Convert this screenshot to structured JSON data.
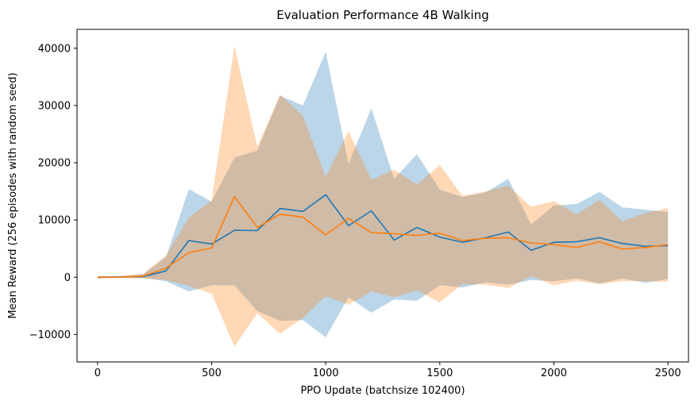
{
  "chart_data": {
    "type": "line",
    "title": "Evaluation Performance 4B Walking",
    "xlabel": "PPO Update (batchsize 102400)",
    "ylabel": "Mean Reward (256 episodes with random seed)",
    "xlim": [
      -90,
      2590
    ],
    "ylim": [
      -14800,
      43300
    ],
    "xticks": [
      0,
      500,
      1000,
      1500,
      2000,
      2500
    ],
    "xtick_labels": [
      "0",
      "500",
      "1000",
      "1500",
      "2000",
      "2500"
    ],
    "yticks": [
      -10000,
      0,
      10000,
      20000,
      30000,
      40000
    ],
    "ytick_labels": [
      "−10000",
      "0",
      "10000",
      "20000",
      "30000",
      "40000"
    ],
    "grid": false,
    "x": [
      0,
      100,
      200,
      300,
      400,
      500,
      600,
      700,
      800,
      900,
      1000,
      1100,
      1200,
      1300,
      1400,
      1500,
      1600,
      1700,
      1800,
      1900,
      2000,
      2100,
      2200,
      2300,
      2400,
      2500
    ],
    "series": [
      {
        "color": "#1f77b4",
        "band_color": "#1f77b4",
        "values": [
          0,
          50,
          100,
          1100,
          6400,
          5800,
          8200,
          8150,
          12000,
          11500,
          14400,
          9000,
          11600,
          6500,
          8700,
          7000,
          6100,
          6900,
          7900,
          4700,
          6100,
          6200,
          6900,
          5900,
          5400,
          5500
        ],
        "band_lower": [
          -200,
          -100,
          -100,
          -700,
          -2500,
          -1400,
          -1400,
          -5900,
          -7600,
          -7500,
          -10500,
          -3500,
          -6200,
          -3900,
          -4100,
          -1400,
          -1800,
          -900,
          -1300,
          -500,
          -700,
          -200,
          -1100,
          -200,
          -1000,
          -300
        ],
        "band_upper": [
          200,
          200,
          500,
          3500,
          15400,
          13200,
          20900,
          22100,
          31700,
          30000,
          39400,
          19800,
          29500,
          17200,
          21500,
          15300,
          14000,
          14800,
          17200,
          9200,
          12500,
          12800,
          14900,
          12200,
          11800,
          11400
        ]
      },
      {
        "color": "#ff7f0e",
        "band_color": "#ff7f0e",
        "values": [
          0,
          0,
          200,
          1600,
          4300,
          5100,
          14100,
          8700,
          11000,
          10500,
          7400,
          10300,
          7800,
          7600,
          7300,
          7700,
          6400,
          6800,
          6900,
          6000,
          5700,
          5200,
          6200,
          4900,
          5200,
          5700
        ],
        "band_lower": [
          -200,
          -100,
          -200,
          -500,
          -1500,
          -2900,
          -12100,
          -6300,
          -9900,
          -7100,
          -3300,
          -4800,
          -2500,
          -3500,
          -2300,
          -4400,
          -1200,
          -1300,
          -1900,
          200,
          -1400,
          -600,
          -1200,
          -700,
          -700,
          -800
        ],
        "band_upper": [
          200,
          200,
          600,
          3800,
          10400,
          13400,
          40400,
          22800,
          31900,
          28200,
          17500,
          25500,
          17000,
          18800,
          16200,
          19600,
          14200,
          15000,
          16000,
          12300,
          13300,
          11000,
          13500,
          9800,
          11200,
          12100
        ]
      }
    ]
  }
}
